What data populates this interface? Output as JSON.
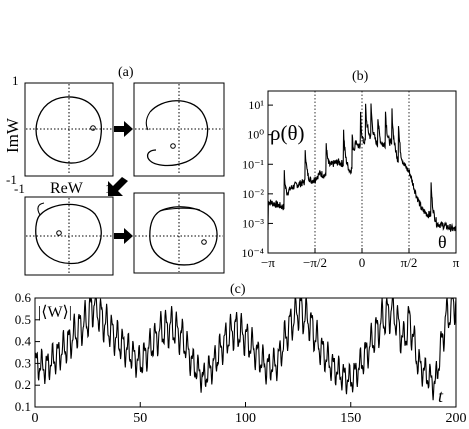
{
  "panel_a": {
    "label": "(a)",
    "y_top": "1",
    "y_bottom": "-1",
    "x_left": "-1",
    "x_right": "1",
    "ylabel": "ImW",
    "xlabel": "ReW"
  },
  "panel_b": {
    "label": "(b)",
    "rho_label": "ρ(θ)",
    "theta_label": "θ"
  },
  "panel_c": {
    "label": "(c)",
    "ylabel": "|⟨W⟩|",
    "xlabel": "t"
  },
  "chart_data": [
    {
      "type": "line",
      "panel": "(b)",
      "scale_y": "log",
      "ylim": [
        0.0001,
        30
      ],
      "xlim": [
        -3.14159,
        3.14159
      ],
      "x_ticks": [
        "−π",
        "−π/2",
        "0",
        "π/2",
        "π"
      ],
      "y_ticks": [
        "10⁻⁴",
        "10⁻³",
        "10⁻²",
        "10⁻¹",
        "10⁰",
        "10¹"
      ],
      "x": [
        -3.14,
        -2.9,
        -2.6,
        -2.4,
        -2.2,
        -1.9,
        -1.6,
        -1.4,
        -1.2,
        -1.0,
        -0.8,
        -0.6,
        -0.4,
        -0.3,
        -0.2,
        0.0,
        0.2,
        0.4,
        0.6,
        0.8,
        1.0,
        1.2,
        1.4,
        1.6,
        1.8,
        2.0,
        2.2,
        2.3,
        2.5,
        2.8,
        3.14
      ],
      "y": [
        0.0055,
        0.0045,
        0.0035,
        0.015,
        0.02,
        0.025,
        0.03,
        0.05,
        0.04,
        0.1,
        0.12,
        0.1,
        0.06,
        0.08,
        0.5,
        0.3,
        0.8,
        0.6,
        0.4,
        0.5,
        0.45,
        0.15,
        0.1,
        0.05,
        0.01,
        0.003,
        0.002,
        0.002,
        0.001,
        0.0008,
        0.0006
      ]
    },
    {
      "type": "line",
      "panel": "(c)",
      "xlim": [
        0,
        200
      ],
      "ylim": [
        0.1,
        0.6
      ],
      "x_ticks": [
        "0",
        "50",
        "100",
        "150",
        "200"
      ],
      "y_ticks": [
        "0.1",
        "0.2",
        "0.3",
        "0.4",
        "0.5",
        "0.6"
      ],
      "x": [
        0,
        5,
        10,
        15,
        20,
        25,
        28,
        32,
        36,
        40,
        45,
        50,
        55,
        60,
        65,
        70,
        75,
        80,
        85,
        90,
        95,
        100,
        105,
        110,
        115,
        120,
        125,
        130,
        135,
        140,
        145,
        150,
        155,
        160,
        165,
        170,
        175,
        178,
        182,
        186,
        190,
        195,
        200
      ],
      "y": [
        0.3,
        0.28,
        0.33,
        0.38,
        0.45,
        0.5,
        0.58,
        0.5,
        0.45,
        0.4,
        0.35,
        0.3,
        0.38,
        0.45,
        0.47,
        0.42,
        0.3,
        0.23,
        0.3,
        0.4,
        0.46,
        0.42,
        0.35,
        0.28,
        0.3,
        0.45,
        0.55,
        0.5,
        0.38,
        0.3,
        0.25,
        0.22,
        0.3,
        0.4,
        0.5,
        0.55,
        0.4,
        0.5,
        0.3,
        0.25,
        0.2,
        0.5,
        0.6
      ]
    }
  ]
}
